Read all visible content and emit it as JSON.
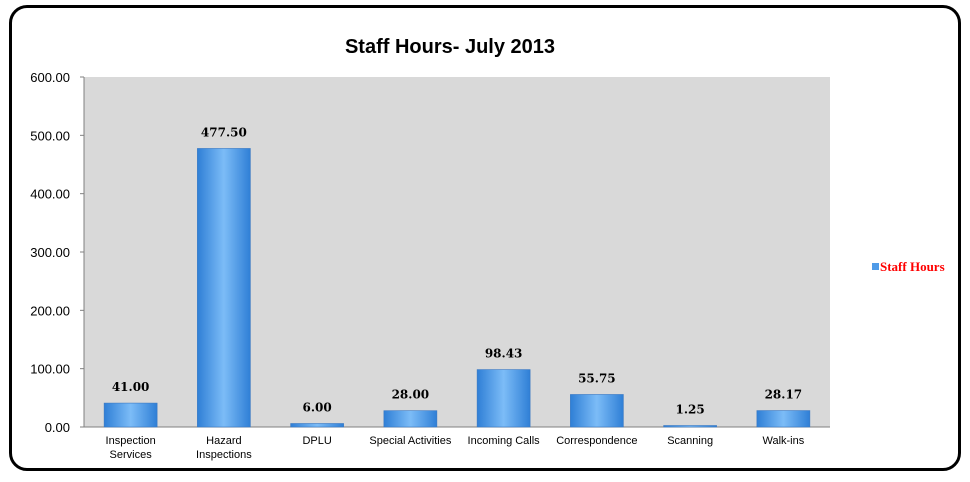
{
  "chart_data": {
    "type": "bar",
    "title": "Staff Hours- July 2013",
    "categories": [
      [
        "Inspection",
        "Services"
      ],
      [
        "Hazard",
        "Inspections"
      ],
      [
        "DPLU"
      ],
      [
        "Special Activities"
      ],
      [
        "Incoming Calls"
      ],
      [
        "Correspondence"
      ],
      [
        "Scanning"
      ],
      [
        "Walk-ins"
      ]
    ],
    "series": [
      {
        "name": "Staff Hours",
        "values": [
          41.0,
          477.5,
          6.0,
          28.0,
          98.43,
          55.75,
          1.25,
          28.17
        ],
        "labels": [
          "41.00",
          "477.50",
          "6.00",
          "28.00",
          "98.43",
          "55.75",
          "1.25",
          "28.17"
        ]
      }
    ],
    "yticks": [
      "0.00",
      "100.00",
      "200.00",
      "300.00",
      "400.00",
      "500.00",
      "600.00"
    ],
    "ylim": [
      0,
      600
    ],
    "grid": false,
    "legend_position": "right",
    "colors": {
      "bar": "#4f9be8",
      "plot_bg": "#d9d9d9",
      "legend_text": "#ff0000",
      "legend_marker": "#4f9be8"
    }
  }
}
